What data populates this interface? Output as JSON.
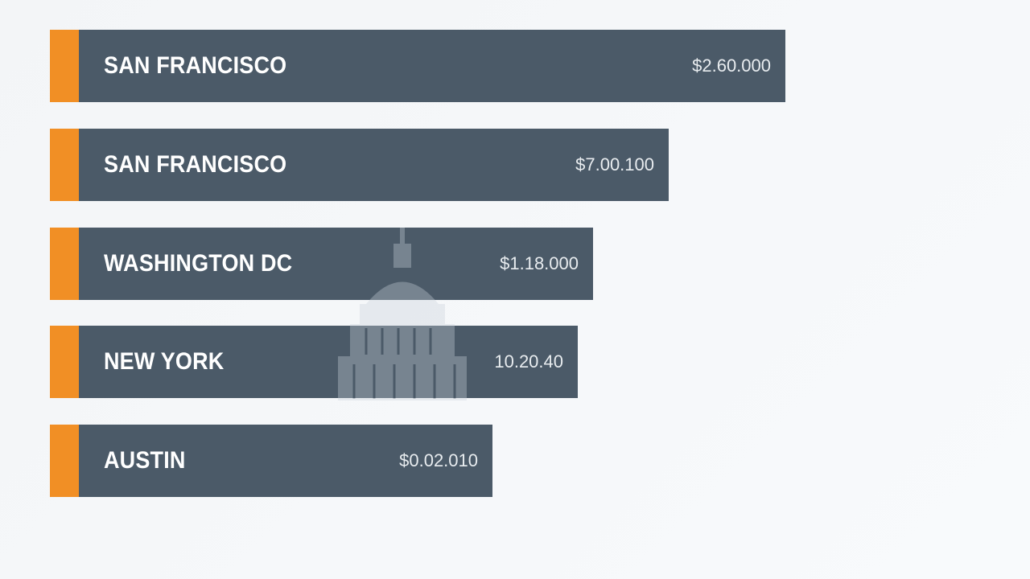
{
  "rows": [
    {
      "label": "SAN FRANCISCO",
      "amount": "$2.60.000"
    },
    {
      "label": "SAN FRANCISCO",
      "amount": "$7.00.100"
    },
    {
      "label": "WASHINGTON DC",
      "amount": "$1.18.000"
    },
    {
      "label": "NEW YORK",
      "amount": "10.20.40"
    },
    {
      "label": "AUSTIN",
      "amount": "$0.02.010"
    }
  ]
}
